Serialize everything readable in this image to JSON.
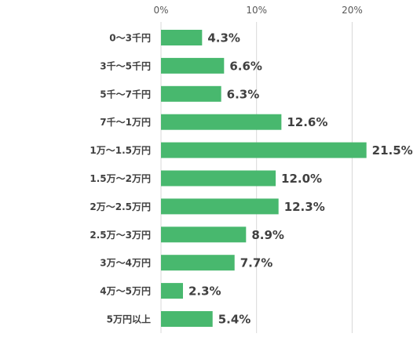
{
  "chart_data": {
    "type": "bar",
    "orientation": "horizontal",
    "title": "",
    "xlabel": "",
    "ylabel": "",
    "x_ticks": [
      "0%",
      "10%",
      "20%"
    ],
    "x_tick_values": [
      0,
      10,
      20
    ],
    "xlim": [
      0,
      26.5
    ],
    "grid": true,
    "legend": "none",
    "bar_color": "#48b86e",
    "grid_color": "#d9d9d9",
    "categories": [
      "0～3千円",
      "3千～5千円",
      "5千～7千円",
      "7千～1万円",
      "1万～1.5万円",
      "1.5万～2万円",
      "2万～2.5万円",
      "2.5万～3万円",
      "3万～4万円",
      "4万～5万円",
      "5万円以上"
    ],
    "values": [
      4.3,
      6.6,
      6.3,
      12.6,
      21.5,
      12.0,
      12.3,
      8.9,
      7.7,
      2.3,
      5.4
    ],
    "data_labels": [
      "4.3%",
      "6.6%",
      "6.3%",
      "12.6%",
      "21.5%",
      "12.0%",
      "12.3%",
      "8.9%",
      "7.7%",
      "2.3%",
      "5.4%"
    ]
  }
}
